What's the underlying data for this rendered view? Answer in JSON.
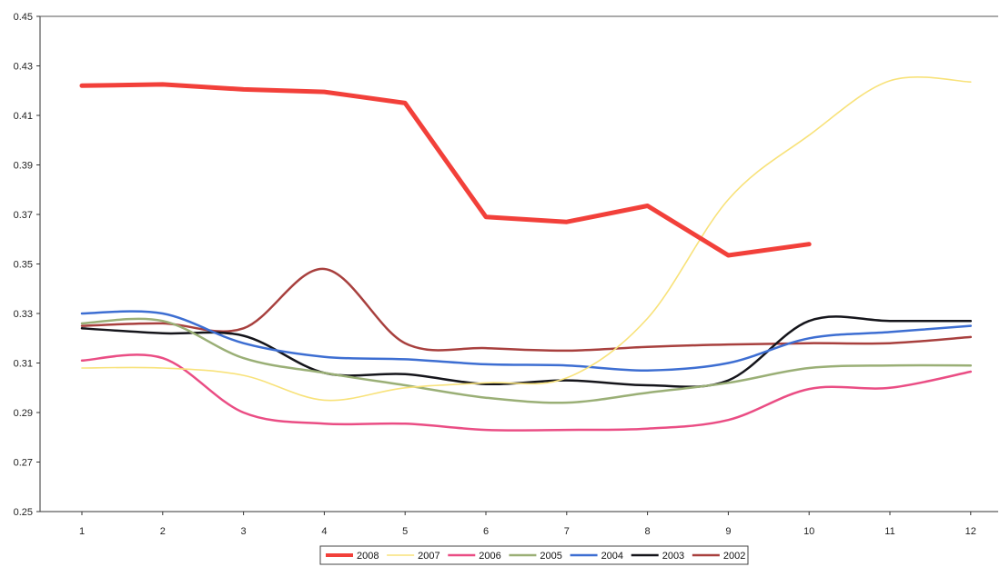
{
  "chart_data": {
    "type": "line",
    "title": "",
    "xlabel": "",
    "ylabel": "",
    "categories": [
      "1",
      "2",
      "3",
      "4",
      "5",
      "6",
      "7",
      "8",
      "9",
      "10",
      "11",
      "12"
    ],
    "ylim": [
      0.25,
      0.45
    ],
    "yticks": [
      "0.25",
      "0.27",
      "0.29",
      "0.31",
      "0.33",
      "0.35",
      "0.37",
      "0.39",
      "0.41",
      "0.43",
      "0.45"
    ],
    "grid": false,
    "legend_position": "bottom",
    "series": [
      {
        "name": "2008",
        "color": "#f2403a",
        "width": 5,
        "smooth": false,
        "values": [
          0.422,
          0.4225,
          0.4205,
          0.4195,
          0.415,
          0.369,
          0.367,
          0.3735,
          0.3535,
          0.358,
          null,
          null
        ]
      },
      {
        "name": "2007",
        "color": "#f8e27a",
        "width": 1.6,
        "smooth": true,
        "values": [
          0.308,
          0.308,
          0.305,
          0.295,
          0.3,
          0.302,
          0.304,
          0.328,
          0.376,
          0.402,
          0.424,
          0.4235
        ]
      },
      {
        "name": "2006",
        "color": "#ea4d84",
        "width": 2.5,
        "smooth": true,
        "values": [
          0.311,
          0.312,
          0.29,
          0.2855,
          0.2855,
          0.283,
          0.283,
          0.2835,
          0.287,
          0.2995,
          0.3,
          0.3065
        ]
      },
      {
        "name": "2005",
        "color": "#9aaf76",
        "width": 2.5,
        "smooth": true,
        "values": [
          0.326,
          0.327,
          0.312,
          0.306,
          0.301,
          0.296,
          0.294,
          0.298,
          0.302,
          0.308,
          0.309,
          0.309
        ]
      },
      {
        "name": "2004",
        "color": "#3d6ed2",
        "width": 2.5,
        "smooth": true,
        "values": [
          0.33,
          0.33,
          0.318,
          0.3125,
          0.3115,
          0.3095,
          0.309,
          0.307,
          0.31,
          0.32,
          0.3225,
          0.325
        ]
      },
      {
        "name": "2003",
        "color": "#15151b",
        "width": 2.5,
        "smooth": true,
        "values": [
          0.324,
          0.322,
          0.321,
          0.306,
          0.3055,
          0.3015,
          0.303,
          0.301,
          0.303,
          0.327,
          0.327,
          0.327
        ]
      },
      {
        "name": "2002",
        "color": "#a8403e",
        "width": 2.5,
        "smooth": true,
        "values": [
          0.325,
          0.326,
          0.324,
          0.348,
          0.318,
          0.316,
          0.315,
          0.3165,
          0.3175,
          0.318,
          0.318,
          0.3205
        ]
      }
    ]
  }
}
